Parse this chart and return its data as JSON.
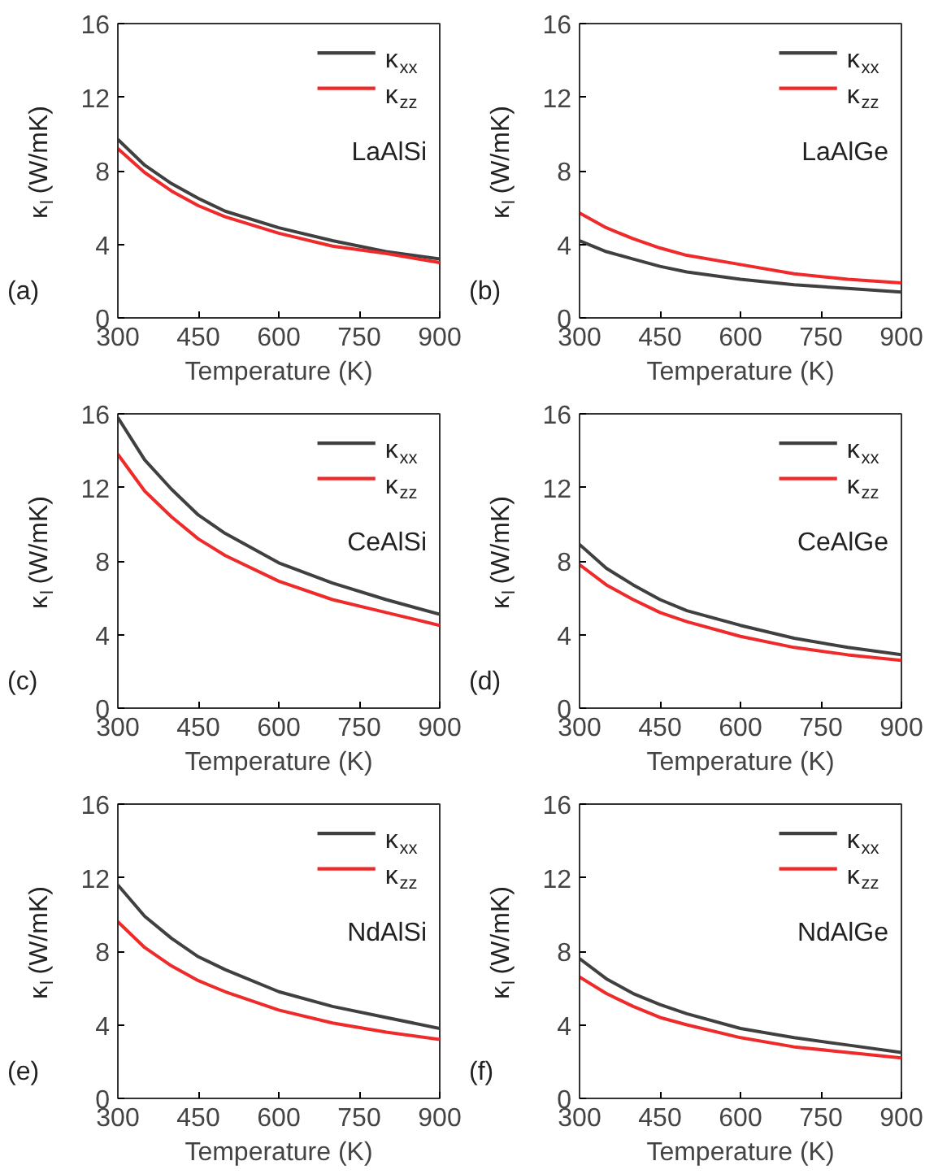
{
  "chart_data": [
    {
      "type": "line",
      "xlabel": "Temperature (K)",
      "ylabel": "κ$_{l}$ (W/mK)",
      "annotations": [
        "(a)",
        "LaAlSi"
      ],
      "x": [
        300,
        350,
        400,
        450,
        500,
        600,
        700,
        800,
        900
      ],
      "xlim": [
        300,
        900
      ],
      "xticks": [
        300,
        450,
        600,
        750,
        900
      ],
      "ylim": [
        0,
        16
      ],
      "yticks": [
        0,
        4,
        8,
        12,
        16
      ],
      "legend": "top right",
      "grid": false,
      "series": [
        {
          "name": "κ$_{xx}$",
          "color": "#404040",
          "values": [
            9.7,
            8.3,
            7.3,
            6.5,
            5.8,
            4.9,
            4.2,
            3.6,
            3.2
          ]
        },
        {
          "name": "κ$_{zz}$",
          "color": "#ee2a2a",
          "values": [
            9.2,
            7.9,
            6.9,
            6.1,
            5.5,
            4.6,
            3.9,
            3.5,
            3.0
          ]
        }
      ]
    },
    {
      "type": "line",
      "xlabel": "Temperature (K)",
      "ylabel": "κ$_{l}$ (W/mK)",
      "annotations": [
        "(b)",
        "LaAlGe"
      ],
      "x": [
        300,
        350,
        400,
        450,
        500,
        600,
        700,
        800,
        900
      ],
      "xlim": [
        300,
        900
      ],
      "xticks": [
        300,
        450,
        600,
        750,
        900
      ],
      "ylim": [
        0,
        16
      ],
      "yticks": [
        0,
        4,
        8,
        12,
        16
      ],
      "legend": "top right",
      "grid": false,
      "series": [
        {
          "name": "κ$_{xx}$",
          "color": "#404040",
          "values": [
            4.2,
            3.6,
            3.2,
            2.8,
            2.5,
            2.1,
            1.8,
            1.6,
            1.4
          ]
        },
        {
          "name": "κ$_{zz}$",
          "color": "#ee2a2a",
          "values": [
            5.7,
            4.9,
            4.3,
            3.8,
            3.4,
            2.9,
            2.4,
            2.1,
            1.9
          ]
        }
      ]
    },
    {
      "type": "line",
      "xlabel": "Temperature (K)",
      "ylabel": "κ$_{l}$ (W/mK)",
      "annotations": [
        "(c)",
        "CeAlSi"
      ],
      "x": [
        300,
        350,
        400,
        450,
        500,
        600,
        700,
        800,
        900
      ],
      "xlim": [
        300,
        900
      ],
      "xticks": [
        300,
        450,
        600,
        750,
        900
      ],
      "ylim": [
        0,
        16
      ],
      "yticks": [
        0,
        4,
        8,
        12,
        16
      ],
      "legend": "top right",
      "grid": false,
      "series": [
        {
          "name": "κ$_{xx}$",
          "color": "#404040",
          "values": [
            15.8,
            13.5,
            11.9,
            10.5,
            9.5,
            7.9,
            6.8,
            5.9,
            5.1
          ]
        },
        {
          "name": "κ$_{zz}$",
          "color": "#ee2a2a",
          "values": [
            13.8,
            11.8,
            10.4,
            9.2,
            8.3,
            6.9,
            5.9,
            5.2,
            4.5
          ]
        }
      ]
    },
    {
      "type": "line",
      "xlabel": "Temperature (K)",
      "ylabel": "κ$_{l}$ (W/mK)",
      "annotations": [
        "(d)",
        "CeAlGe"
      ],
      "x": [
        300,
        350,
        400,
        450,
        500,
        600,
        700,
        800,
        900
      ],
      "xlim": [
        300,
        900
      ],
      "xticks": [
        300,
        450,
        600,
        750,
        900
      ],
      "ylim": [
        0,
        16
      ],
      "yticks": [
        0,
        4,
        8,
        12,
        16
      ],
      "legend": "top right",
      "grid": false,
      "series": [
        {
          "name": "κ$_{xx}$",
          "color": "#404040",
          "values": [
            8.9,
            7.6,
            6.7,
            5.9,
            5.3,
            4.5,
            3.8,
            3.3,
            2.9
          ]
        },
        {
          "name": "κ$_{zz}$",
          "color": "#ee2a2a",
          "values": [
            7.8,
            6.7,
            5.9,
            5.2,
            4.7,
            3.9,
            3.3,
            2.9,
            2.6
          ]
        }
      ]
    },
    {
      "type": "line",
      "xlabel": "Temperature (K)",
      "ylabel": "κ$_{l}$ (W/mK)",
      "annotations": [
        "(e)",
        "NdAlSi"
      ],
      "x": [
        300,
        350,
        400,
        450,
        500,
        600,
        700,
        800,
        900
      ],
      "xlim": [
        300,
        900
      ],
      "xticks": [
        300,
        450,
        600,
        750,
        900
      ],
      "ylim": [
        0,
        16
      ],
      "yticks": [
        0,
        4,
        8,
        12,
        16
      ],
      "legend": "top right",
      "grid": false,
      "series": [
        {
          "name": "κ$_{xx}$",
          "color": "#404040",
          "values": [
            11.6,
            9.9,
            8.7,
            7.7,
            7.0,
            5.8,
            5.0,
            4.4,
            3.8
          ]
        },
        {
          "name": "κ$_{zz}$",
          "color": "#ee2a2a",
          "values": [
            9.6,
            8.2,
            7.2,
            6.4,
            5.8,
            4.8,
            4.1,
            3.6,
            3.2
          ]
        }
      ]
    },
    {
      "type": "line",
      "xlabel": "Temperature (K)",
      "ylabel": "κ$_{l}$ (W/mK)",
      "annotations": [
        "(f)",
        "NdAlGe"
      ],
      "x": [
        300,
        350,
        400,
        450,
        500,
        600,
        700,
        800,
        900
      ],
      "xlim": [
        300,
        900
      ],
      "xticks": [
        300,
        450,
        600,
        750,
        900
      ],
      "ylim": [
        0,
        16
      ],
      "yticks": [
        0,
        4,
        8,
        12,
        16
      ],
      "legend": "top right",
      "grid": false,
      "series": [
        {
          "name": "κ$_{xx}$",
          "color": "#404040",
          "values": [
            7.6,
            6.5,
            5.7,
            5.1,
            4.6,
            3.8,
            3.3,
            2.9,
            2.5
          ]
        },
        {
          "name": "κ$_{zz}$",
          "color": "#ee2a2a",
          "values": [
            6.6,
            5.7,
            5.0,
            4.4,
            4.0,
            3.3,
            2.8,
            2.5,
            2.2
          ]
        }
      ]
    }
  ]
}
